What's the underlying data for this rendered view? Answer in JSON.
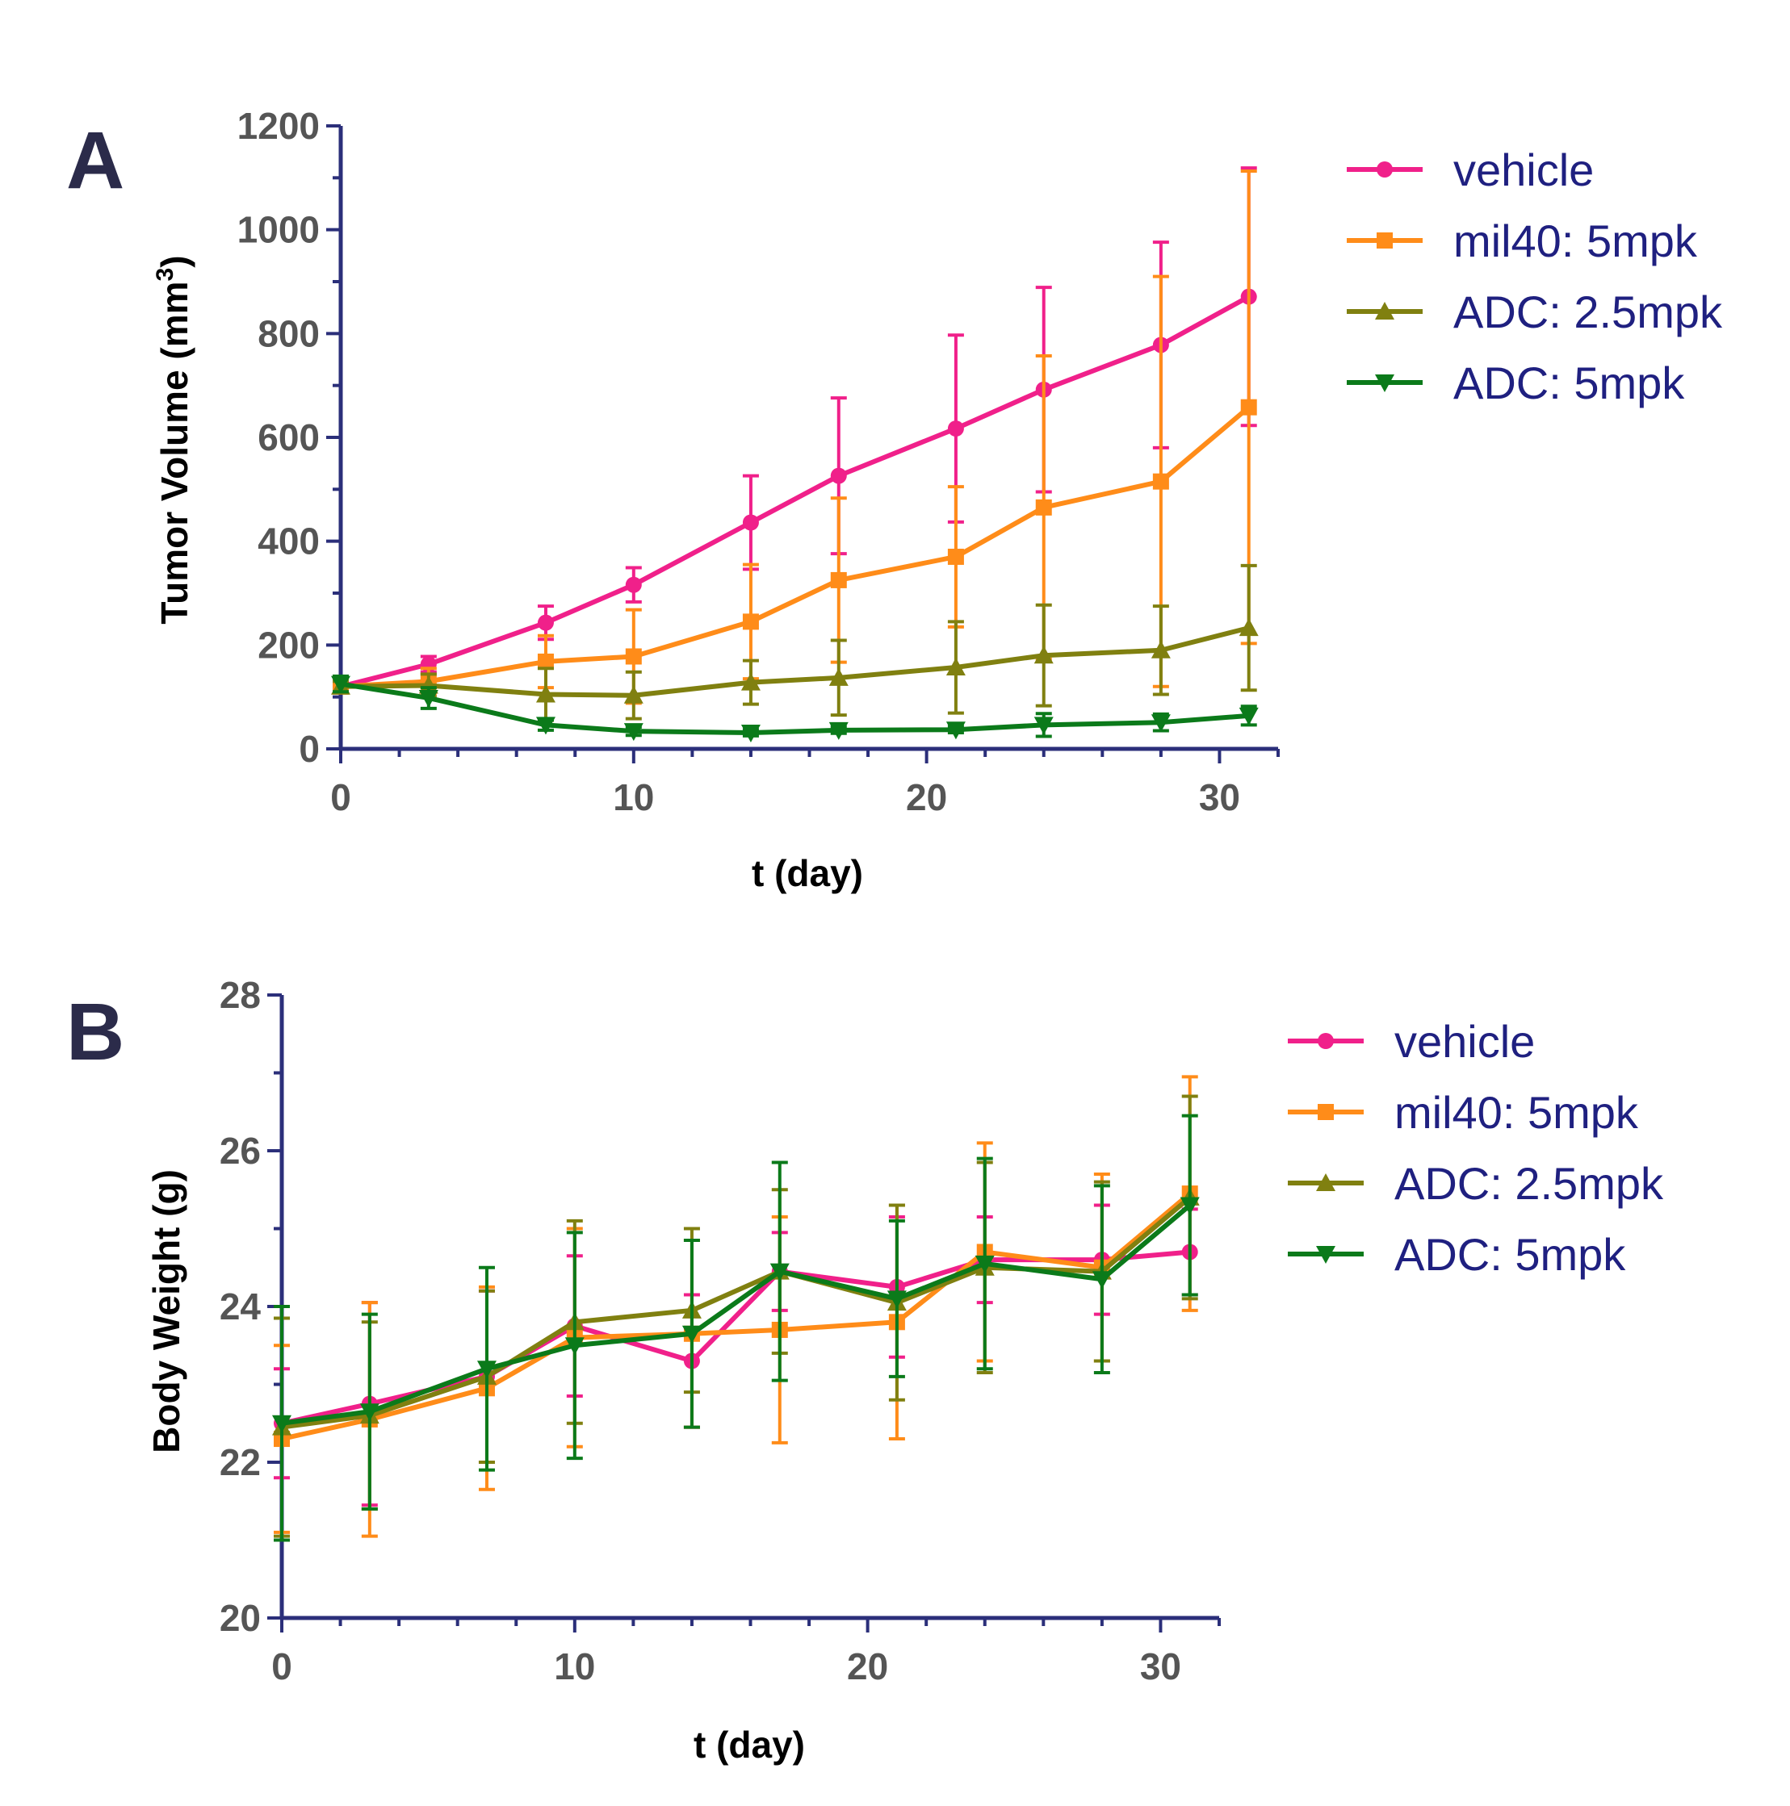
{
  "chart_data": [
    {
      "panel_label": "A",
      "type": "line",
      "xlabel": "t (day)",
      "ylabel": "Tumor Volume (mm",
      "ylabel_superscript": "3",
      "ylabel_close": ")",
      "xlim": [
        0,
        32
      ],
      "ylim": [
        0,
        1200
      ],
      "xticks": [
        0,
        10,
        20,
        30
      ],
      "yticks": [
        0,
        200,
        400,
        600,
        800,
        1000,
        1200
      ],
      "x_minor_step": 2,
      "y_minor_step": 100,
      "legend": "right",
      "series": [
        {
          "name": "vehicle",
          "color": "#f0208a",
          "marker": "circle",
          "x": [
            0,
            3,
            7,
            10,
            14,
            17,
            21,
            24,
            28,
            31
          ],
          "y": [
            120,
            163,
            243,
            316,
            436,
            526,
            617,
            692,
            778,
            871
          ],
          "err": [
            10,
            15,
            32,
            33,
            90,
            150,
            180,
            197,
            198,
            248
          ]
        },
        {
          "name": "mil40: 5mpk",
          "color": "#ff8c19",
          "marker": "square",
          "x": [
            0,
            3,
            7,
            10,
            14,
            17,
            21,
            24,
            28,
            31
          ],
          "y": [
            120,
            130,
            168,
            178,
            245,
            325,
            370,
            465,
            515,
            658
          ],
          "err": [
            10,
            25,
            50,
            90,
            110,
            158,
            135,
            292,
            395,
            455
          ]
        },
        {
          "name": "ADC: 2.5mpk",
          "color": "#808010",
          "marker": "triangle-up",
          "x": [
            0,
            3,
            7,
            10,
            14,
            17,
            21,
            24,
            28,
            31
          ],
          "y": [
            120,
            122,
            105,
            103,
            128,
            137,
            157,
            180,
            190,
            233
          ],
          "err": [
            10,
            22,
            50,
            45,
            42,
            72,
            88,
            97,
            85,
            120
          ]
        },
        {
          "name": "ADC: 5mpk",
          "color": "#0b7a1a",
          "marker": "triangle-down",
          "x": [
            0,
            3,
            7,
            10,
            14,
            17,
            21,
            24,
            28,
            31
          ],
          "y": [
            125,
            98,
            46,
            34,
            31,
            36,
            37,
            46,
            51,
            64
          ],
          "err": [
            15,
            20,
            10,
            8,
            6,
            6,
            6,
            22,
            16,
            18
          ]
        }
      ]
    },
    {
      "panel_label": "B",
      "type": "line",
      "xlabel": "t (day)",
      "ylabel": "Body Weight (g)",
      "xlim": [
        0,
        32
      ],
      "ylim": [
        20,
        28
      ],
      "xticks": [
        0,
        10,
        20,
        30
      ],
      "yticks": [
        20,
        22,
        24,
        26,
        28
      ],
      "x_minor_step": 2,
      "y_minor_step": 1,
      "legend": "right",
      "series": [
        {
          "name": "vehicle",
          "color": "#f0208a",
          "marker": "circle",
          "x": [
            0,
            3,
            7,
            10,
            14,
            17,
            21,
            24,
            28,
            31
          ],
          "y": [
            22.5,
            22.75,
            23.1,
            23.75,
            23.3,
            24.45,
            24.25,
            24.6,
            24.6,
            24.7
          ],
          "err": [
            0.7,
            1.3,
            1.1,
            0.9,
            0.85,
            0.5,
            0.9,
            0.55,
            0.7,
            0.55
          ]
        },
        {
          "name": "mil40: 5mpk",
          "color": "#ff8c19",
          "marker": "square",
          "x": [
            0,
            3,
            7,
            10,
            14,
            17,
            21,
            24,
            28,
            31
          ],
          "y": [
            22.3,
            22.55,
            22.95,
            23.6,
            23.65,
            23.7,
            23.8,
            24.7,
            24.5,
            25.45
          ],
          "err": [
            1.2,
            1.5,
            1.3,
            1.4,
            1.2,
            1.45,
            1.5,
            1.4,
            1.2,
            1.5
          ]
        },
        {
          "name": "ADC: 2.5mpk",
          "color": "#808010",
          "marker": "triangle-up",
          "x": [
            0,
            3,
            7,
            10,
            14,
            17,
            21,
            24,
            28,
            31
          ],
          "y": [
            22.45,
            22.6,
            23.1,
            23.8,
            23.95,
            24.45,
            24.05,
            24.5,
            24.45,
            25.4
          ],
          "err": [
            1.4,
            1.2,
            1.1,
            1.3,
            1.05,
            1.05,
            1.25,
            1.35,
            1.15,
            1.3
          ]
        },
        {
          "name": "ADC: 5mpk",
          "color": "#0b7a1a",
          "marker": "triangle-down",
          "x": [
            0,
            3,
            7,
            10,
            14,
            17,
            21,
            24,
            28,
            31
          ],
          "y": [
            22.5,
            22.65,
            23.2,
            23.5,
            23.65,
            24.45,
            24.1,
            24.55,
            24.35,
            25.3
          ],
          "err": [
            1.5,
            1.25,
            1.3,
            1.45,
            1.2,
            1.4,
            1.0,
            1.35,
            1.2,
            1.15
          ]
        }
      ]
    }
  ],
  "style": {
    "axis_color": "#2b2f7a",
    "tick_label_color": "#555555",
    "legend_text_color": "#1f2080",
    "panel_letter_color": "#2b2b4a"
  }
}
